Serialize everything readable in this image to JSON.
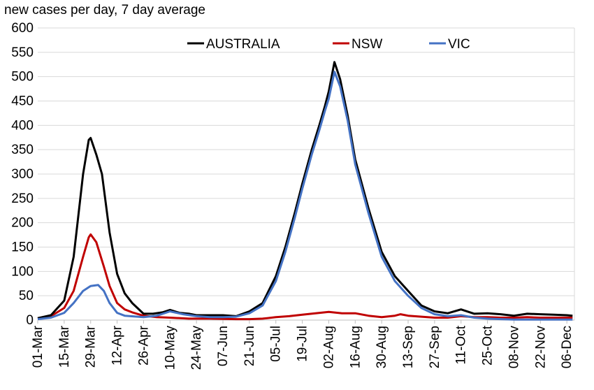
{
  "chart_data": {
    "type": "line",
    "title": "new cases per day, 7 day average",
    "xlabel": "",
    "ylabel": "",
    "ylim": [
      0,
      600
    ],
    "yticks": [
      0,
      50,
      100,
      150,
      200,
      250,
      300,
      350,
      400,
      450,
      500,
      550,
      600
    ],
    "x_start": "01-Mar",
    "x_tick_labels": [
      "01-Mar",
      "15-Mar",
      "29-Mar",
      "12-Apr",
      "26-Apr",
      "10-May",
      "24-May",
      "07-Jun",
      "21-Jun",
      "05-Jul",
      "19-Jul",
      "02-Aug",
      "16-Aug",
      "30-Aug",
      "13-Sep",
      "27-Sep",
      "11-Oct",
      "25-Oct",
      "08-Nov",
      "22-Nov",
      "06-Dec"
    ],
    "grid": true,
    "legend_position": "top",
    "series": [
      {
        "name": "AUSTRALIA",
        "color": "#000000",
        "points": [
          [
            "01-Mar",
            4
          ],
          [
            "08-Mar",
            10
          ],
          [
            "15-Mar",
            40
          ],
          [
            "20-Mar",
            130
          ],
          [
            "25-Mar",
            300
          ],
          [
            "28-Mar",
            370
          ],
          [
            "29-Mar",
            374
          ],
          [
            "01-Apr",
            340
          ],
          [
            "04-Apr",
            300
          ],
          [
            "08-Apr",
            180
          ],
          [
            "12-Apr",
            95
          ],
          [
            "16-Apr",
            55
          ],
          [
            "20-Apr",
            35
          ],
          [
            "26-Apr",
            13
          ],
          [
            "01-May",
            13
          ],
          [
            "06-May",
            16
          ],
          [
            "10-May",
            21
          ],
          [
            "15-May",
            15
          ],
          [
            "20-May",
            13
          ],
          [
            "24-May",
            10
          ],
          [
            "31-May",
            10
          ],
          [
            "07-Jun",
            10
          ],
          [
            "14-Jun",
            8
          ],
          [
            "21-Jun",
            18
          ],
          [
            "28-Jun",
            35
          ],
          [
            "05-Jul",
            90
          ],
          [
            "10-Jul",
            150
          ],
          [
            "15-Jul",
            220
          ],
          [
            "19-Jul",
            280
          ],
          [
            "24-Jul",
            350
          ],
          [
            "28-Jul",
            400
          ],
          [
            "31-Jul",
            440
          ],
          [
            "02-Aug",
            470
          ],
          [
            "05-Aug",
            530
          ],
          [
            "08-Aug",
            495
          ],
          [
            "12-Aug",
            420
          ],
          [
            "16-Aug",
            330
          ],
          [
            "23-Aug",
            230
          ],
          [
            "30-Aug",
            140
          ],
          [
            "06-Sep",
            90
          ],
          [
            "13-Sep",
            60
          ],
          [
            "20-Sep",
            30
          ],
          [
            "27-Sep",
            18
          ],
          [
            "04-Oct",
            14
          ],
          [
            "11-Oct",
            22
          ],
          [
            "18-Oct",
            13
          ],
          [
            "25-Oct",
            14
          ],
          [
            "01-Nov",
            12
          ],
          [
            "08-Nov",
            9
          ],
          [
            "15-Nov",
            13
          ],
          [
            "22-Nov",
            12
          ],
          [
            "29-Nov",
            11
          ],
          [
            "06-Dec",
            10
          ],
          [
            "09-Dec",
            9
          ]
        ]
      },
      {
        "name": "NSW",
        "color": "#c00000",
        "points": [
          [
            "01-Mar",
            3
          ],
          [
            "08-Mar",
            8
          ],
          [
            "15-Mar",
            25
          ],
          [
            "20-Mar",
            60
          ],
          [
            "25-Mar",
            130
          ],
          [
            "28-Mar",
            170
          ],
          [
            "29-Mar",
            176
          ],
          [
            "01-Apr",
            160
          ],
          [
            "05-Apr",
            110
          ],
          [
            "08-Apr",
            70
          ],
          [
            "12-Apr",
            35
          ],
          [
            "16-Apr",
            22
          ],
          [
            "20-Apr",
            16
          ],
          [
            "26-Apr",
            9
          ],
          [
            "03-May",
            6
          ],
          [
            "10-May",
            5
          ],
          [
            "20-May",
            3
          ],
          [
            "31-May",
            3
          ],
          [
            "14-Jun",
            2
          ],
          [
            "21-Jun",
            2
          ],
          [
            "28-Jun",
            3
          ],
          [
            "05-Jul",
            6
          ],
          [
            "12-Jul",
            8
          ],
          [
            "19-Jul",
            11
          ],
          [
            "26-Jul",
            14
          ],
          [
            "02-Aug",
            17
          ],
          [
            "09-Aug",
            14
          ],
          [
            "16-Aug",
            14
          ],
          [
            "23-Aug",
            9
          ],
          [
            "30-Aug",
            6
          ],
          [
            "06-Sep",
            9
          ],
          [
            "09-Sep",
            12
          ],
          [
            "13-Sep",
            9
          ],
          [
            "20-Sep",
            7
          ],
          [
            "27-Sep",
            5
          ],
          [
            "04-Oct",
            5
          ],
          [
            "11-Oct",
            8
          ],
          [
            "18-Oct",
            6
          ],
          [
            "25-Oct",
            6
          ],
          [
            "01-Nov",
            5
          ],
          [
            "08-Nov",
            5
          ],
          [
            "15-Nov",
            6
          ],
          [
            "22-Nov",
            5
          ],
          [
            "29-Nov",
            5
          ],
          [
            "09-Dec",
            5
          ]
        ]
      },
      {
        "name": "VIC",
        "color": "#4472c4",
        "points": [
          [
            "01-Mar",
            2
          ],
          [
            "08-Mar",
            5
          ],
          [
            "15-Mar",
            15
          ],
          [
            "20-Mar",
            35
          ],
          [
            "25-Mar",
            60
          ],
          [
            "29-Mar",
            70
          ],
          [
            "02-Apr",
            72
          ],
          [
            "05-Apr",
            60
          ],
          [
            "08-Apr",
            35
          ],
          [
            "12-Apr",
            15
          ],
          [
            "16-Apr",
            9
          ],
          [
            "26-Apr",
            6
          ],
          [
            "03-May",
            9
          ],
          [
            "10-May",
            18
          ],
          [
            "17-May",
            12
          ],
          [
            "24-May",
            8
          ],
          [
            "31-May",
            6
          ],
          [
            "07-Jun",
            6
          ],
          [
            "14-Jun",
            7
          ],
          [
            "21-Jun",
            14
          ],
          [
            "28-Jun",
            30
          ],
          [
            "05-Jul",
            80
          ],
          [
            "10-Jul",
            140
          ],
          [
            "15-Jul",
            210
          ],
          [
            "19-Jul",
            270
          ],
          [
            "24-Jul",
            340
          ],
          [
            "28-Jul",
            390
          ],
          [
            "31-Jul",
            430
          ],
          [
            "02-Aug",
            455
          ],
          [
            "05-Aug",
            510
          ],
          [
            "08-Aug",
            480
          ],
          [
            "12-Aug",
            410
          ],
          [
            "16-Aug",
            320
          ],
          [
            "23-Aug",
            220
          ],
          [
            "30-Aug",
            130
          ],
          [
            "06-Sep",
            80
          ],
          [
            "13-Sep",
            50
          ],
          [
            "20-Sep",
            25
          ],
          [
            "27-Sep",
            12
          ],
          [
            "04-Oct",
            8
          ],
          [
            "11-Oct",
            10
          ],
          [
            "18-Oct",
            5
          ],
          [
            "25-Oct",
            3
          ],
          [
            "01-Nov",
            2
          ],
          [
            "08-Nov",
            1
          ],
          [
            "22-Nov",
            1
          ],
          [
            "09-Dec",
            1
          ]
        ]
      }
    ]
  }
}
